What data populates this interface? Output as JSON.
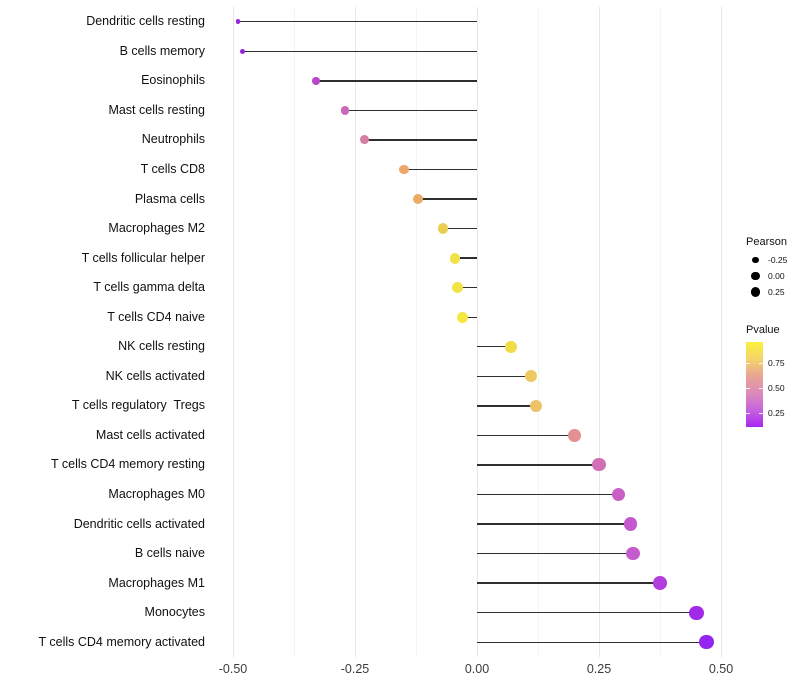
{
  "chart_data": {
    "type": "scatter",
    "subtype": "lollipop",
    "title": "",
    "xlabel": "",
    "ylabel": "",
    "x_ticks": [
      -0.5,
      -0.25,
      0.0,
      0.25,
      0.5
    ],
    "x_tick_labels": [
      "-0.50",
      "-0.25",
      "0.00",
      "0.25",
      "0.50"
    ],
    "x_minor_ticks": [
      -0.375,
      -0.125,
      0.125,
      0.375
    ],
    "xlim": [
      -0.54,
      0.53
    ],
    "grid": "vertical major+minor, no horizontal",
    "legend_position": "right",
    "points": [
      {
        "category": "Dendritic cells resting",
        "pearson": -0.49,
        "pvalue": 0.03,
        "color": "#9326DE"
      },
      {
        "category": "B cells memory",
        "pearson": -0.48,
        "pvalue": 0.03,
        "color": "#9326DE"
      },
      {
        "category": "Eosinophils",
        "pearson": -0.33,
        "pvalue": 0.16,
        "color": "#B548C6"
      },
      {
        "category": "Mast cells resting",
        "pearson": -0.27,
        "pvalue": 0.26,
        "color": "#CA68BC"
      },
      {
        "category": "Neutrophils",
        "pearson": -0.23,
        "pvalue": 0.33,
        "color": "#D67FA5"
      },
      {
        "category": "T cells CD8",
        "pearson": -0.15,
        "pvalue": 0.58,
        "color": "#ECA86A"
      },
      {
        "category": "Plasma cells",
        "pearson": -0.12,
        "pvalue": 0.6,
        "color": "#EBAB64"
      },
      {
        "category": "Macrophages M2",
        "pearson": -0.07,
        "pvalue": 0.74,
        "color": "#EACE50"
      },
      {
        "category": "T cells follicular helper",
        "pearson": -0.045,
        "pvalue": 0.85,
        "color": "#F1E246"
      },
      {
        "category": "T cells gamma delta",
        "pearson": -0.04,
        "pvalue": 0.86,
        "color": "#F2E443"
      },
      {
        "category": "T cells CD4 naive",
        "pearson": -0.03,
        "pvalue": 0.88,
        "color": "#F3E742"
      },
      {
        "category": "NK cells resting",
        "pearson": 0.07,
        "pvalue": 0.8,
        "color": "#F0DC48"
      },
      {
        "category": "NK cells activated",
        "pearson": 0.11,
        "pvalue": 0.7,
        "color": "#EEC95F"
      },
      {
        "category": "T cells regulatory  Tregs",
        "pearson": 0.12,
        "pvalue": 0.68,
        "color": "#EEC367"
      },
      {
        "category": "Mast cells activated",
        "pearson": 0.2,
        "pvalue": 0.4,
        "color": "#E59090"
      },
      {
        "category": "T cells CD4 memory resting",
        "pearson": 0.25,
        "pvalue": 0.28,
        "color": "#D16FB5"
      },
      {
        "category": "Macrophages M0",
        "pearson": 0.29,
        "pvalue": 0.22,
        "color": "#C85FC5"
      },
      {
        "category": "Dendritic cells activated",
        "pearson": 0.315,
        "pvalue": 0.2,
        "color": "#C459CE"
      },
      {
        "category": "B cells naive",
        "pearson": 0.32,
        "pvalue": 0.2,
        "color": "#C45CCB"
      },
      {
        "category": "Macrophages M1",
        "pearson": 0.375,
        "pvalue": 0.13,
        "color": "#B13EDC"
      },
      {
        "category": "Monocytes",
        "pearson": 0.45,
        "pvalue": 0.07,
        "color": "#A02AE8"
      },
      {
        "category": "T cells CD4 memory activated",
        "pearson": 0.47,
        "pvalue": 0.04,
        "color": "#9524F0"
      }
    ],
    "legends": {
      "size": {
        "title": "Pearson",
        "dot_color": "#000000",
        "items": [
          {
            "label": "-0.25",
            "radius": 3.4
          },
          {
            "label": "0.00",
            "radius": 4.1
          },
          {
            "label": "0.25",
            "radius": 4.6
          }
        ]
      },
      "color": {
        "title": "Pvalue",
        "tick_labels": [
          "0.75",
          "0.50",
          "0.25"
        ],
        "gradient_top_to_bottom": [
          "#FBF23C",
          "#F5D36A",
          "#E9A495",
          "#DC8BBA",
          "#C764DE",
          "#A826F2"
        ]
      }
    },
    "stem_color": "#2f2f2f",
    "gridline_major_color": "#e7e7e7",
    "gridline_minor_color": "#f4f4f4",
    "background_color": "#ffffff"
  }
}
